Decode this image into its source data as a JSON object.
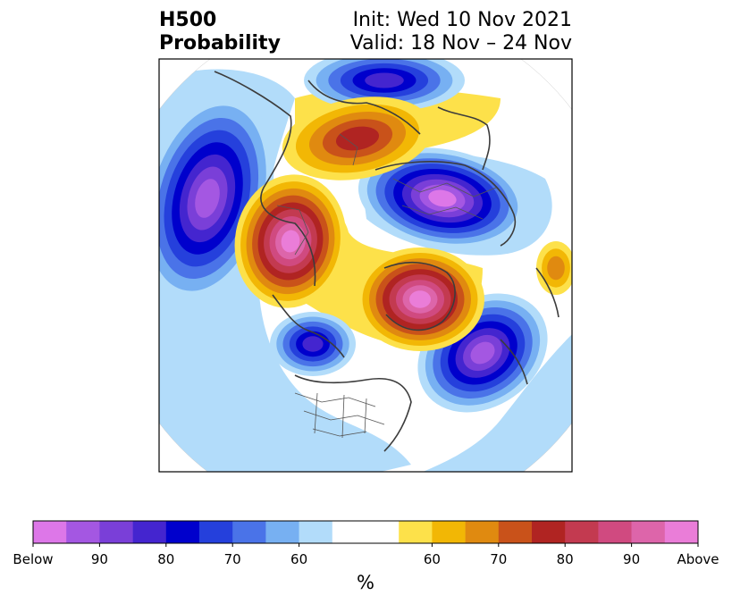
{
  "title_left": {
    "line1": "H500",
    "line2": "Probability"
  },
  "title_right": {
    "line1": "Init: Wed 10 Nov 2021",
    "line2": "Valid: 18 Nov – 24 Nov"
  },
  "colorbar": {
    "unit": "%",
    "tick_labels": [
      "Below",
      "90",
      "80",
      "70",
      "60",
      "60",
      "70",
      "80",
      "90",
      "Above"
    ],
    "below_colors": [
      "#dd77e8",
      "#a457e2",
      "#7a3fd8",
      "#4425cf",
      "#0000cc",
      "#2540dc",
      "#4a73e8",
      "#77b0f2",
      "#b2dcfa"
    ],
    "neutral_color": "#ffffff",
    "above_colors": [
      "#fde14a",
      "#f2b705",
      "#e08a10",
      "#c9521a",
      "#b02422",
      "#c33a50",
      "#d04a80",
      "#dd65aa",
      "#ea7dd8"
    ]
  },
  "map": {
    "projection": "polar-stereographic",
    "regions": [
      {
        "name": "eastern-pacific-low",
        "category": "below",
        "level": 9
      },
      {
        "name": "northern-europe-low",
        "category": "below",
        "level": 8
      },
      {
        "name": "eastern-asia-low",
        "category": "below",
        "level": 8
      },
      {
        "name": "western-north-america-low",
        "category": "below",
        "level": 6
      },
      {
        "name": "alaska-low",
        "category": "below",
        "level": 6
      },
      {
        "name": "siberia-high",
        "category": "above",
        "level": 9
      },
      {
        "name": "greenland-high",
        "category": "above",
        "level": 9
      },
      {
        "name": "arctic-high",
        "category": "above",
        "level": 5
      },
      {
        "name": "eastern-europe-high",
        "category": "above",
        "level": 3
      }
    ]
  }
}
